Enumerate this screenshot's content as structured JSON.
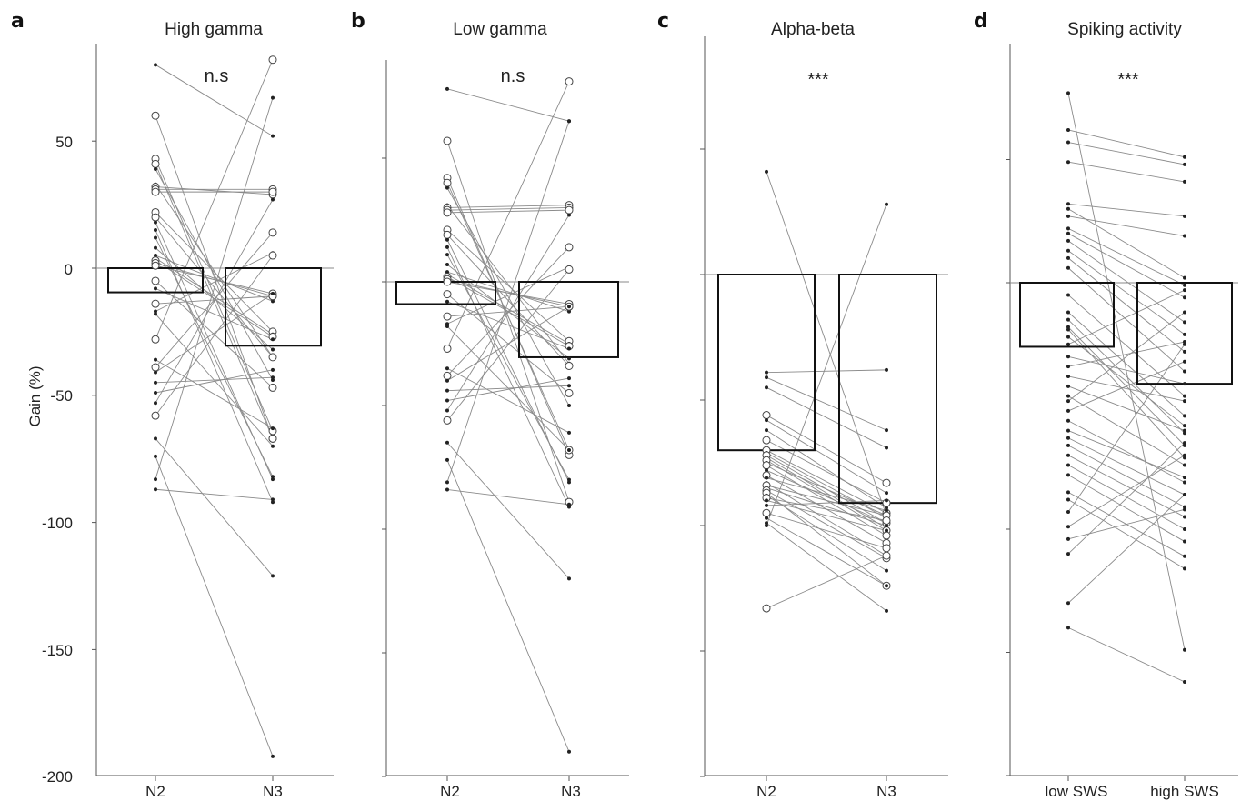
{
  "figure": {
    "ylabel": "Gain (%)",
    "yticks": [
      50,
      0,
      -50,
      -100,
      -150,
      -200
    ]
  },
  "chart_data": [
    {
      "type": "bar",
      "panel": "a",
      "title": "High gamma",
      "significance": "n.s",
      "categories": [
        "N2",
        "N3"
      ],
      "values": [
        -9.5,
        -30.5
      ],
      "ylabel": "Gain (%)",
      "ylim": [
        -200,
        88
      ],
      "yticks": [
        50,
        0,
        -50,
        -100,
        -150,
        -200
      ],
      "grid": false,
      "paired_points": [
        [
          80,
          52,
          "dot"
        ],
        [
          60,
          -67,
          "circle"
        ],
        [
          43,
          -64,
          "circle"
        ],
        [
          41,
          -67,
          "circle"
        ],
        [
          39,
          -44,
          "dot"
        ],
        [
          33,
          -35,
          "dot"
        ],
        [
          32,
          29,
          "circle"
        ],
        [
          31,
          31,
          "circle"
        ],
        [
          30,
          30,
          "circle"
        ],
        [
          22,
          -25,
          "circle"
        ],
        [
          20,
          -35,
          "circle"
        ],
        [
          18,
          -83,
          "dot"
        ],
        [
          15,
          -92,
          "dot"
        ],
        [
          12,
          -82,
          "dot"
        ],
        [
          8,
          -32,
          "dot"
        ],
        [
          5,
          -13,
          "dot"
        ],
        [
          4,
          -26,
          "dot"
        ],
        [
          3,
          -27,
          "circle"
        ],
        [
          2,
          -11,
          "circle"
        ],
        [
          1,
          -10,
          "circle"
        ],
        [
          -5,
          -47,
          "circle"
        ],
        [
          -8,
          -28,
          "dot"
        ],
        [
          -14,
          -11,
          "circle"
        ],
        [
          -17,
          6,
          "dot"
        ],
        [
          -18,
          -70,
          "dot"
        ],
        [
          -28,
          82,
          "circle"
        ],
        [
          -36,
          -63,
          "dot"
        ],
        [
          -39,
          14,
          "circle"
        ],
        [
          -41,
          -10,
          "dot"
        ],
        [
          -45,
          -43,
          "dot"
        ],
        [
          -49,
          -40,
          "dot"
        ],
        [
          -53,
          27,
          "dot"
        ],
        [
          -58,
          5,
          "circle"
        ],
        [
          -67,
          -121,
          "dot"
        ],
        [
          -74,
          -192,
          "dot"
        ],
        [
          -83,
          67,
          "dot"
        ],
        [
          -87,
          -91,
          "dot"
        ]
      ]
    },
    {
      "type": "bar",
      "panel": "b",
      "title": "Low gamma",
      "significance": "n.s",
      "categories": [
        "N2",
        "N3"
      ],
      "values": [
        -9,
        -30.5
      ],
      "ylim": [
        -200,
        88
      ],
      "yticks": [
        50,
        0,
        -50,
        -100,
        -150,
        -200
      ],
      "grid": false,
      "paired_points": [
        [
          78,
          65,
          "dot"
        ],
        [
          57,
          -89,
          "circle"
        ],
        [
          42,
          -70,
          "circle"
        ],
        [
          40,
          -68,
          "circle"
        ],
        [
          38,
          -50,
          "dot"
        ],
        [
          31,
          -33,
          "dot"
        ],
        [
          30,
          31,
          "circle"
        ],
        [
          29,
          30,
          "circle"
        ],
        [
          28,
          29,
          "circle"
        ],
        [
          21,
          -24,
          "circle"
        ],
        [
          19,
          -34,
          "circle"
        ],
        [
          17,
          -81,
          "dot"
        ],
        [
          14,
          -91,
          "dot"
        ],
        [
          11,
          -80,
          "dot"
        ],
        [
          7,
          -31,
          "dot"
        ],
        [
          4,
          -12,
          "dot"
        ],
        [
          3,
          -25,
          "dot"
        ],
        [
          2,
          -26,
          "circle"
        ],
        [
          1,
          -10,
          "circle"
        ],
        [
          0,
          -9,
          "circle"
        ],
        [
          -5,
          -45,
          "circle"
        ],
        [
          -8,
          -27,
          "dot"
        ],
        [
          -14,
          -10,
          "circle"
        ],
        [
          -17,
          6,
          "dot"
        ],
        [
          -18,
          -68,
          "dot"
        ],
        [
          -27,
          81,
          "circle"
        ],
        [
          -35,
          -61,
          "dot"
        ],
        [
          -38,
          14,
          "circle"
        ],
        [
          -40,
          -10,
          "dot"
        ],
        [
          -44,
          -42,
          "dot"
        ],
        [
          -48,
          -39,
          "dot"
        ],
        [
          -52,
          27,
          "dot"
        ],
        [
          -56,
          5,
          "circle"
        ],
        [
          -65,
          -120,
          "dot"
        ],
        [
          -72,
          -190,
          "dot"
        ],
        [
          -81,
          65,
          "dot"
        ],
        [
          -84,
          -90,
          "dot"
        ]
      ]
    },
    {
      "type": "bar",
      "panel": "c",
      "title": "Alpha-beta",
      "significance": "***",
      "categories": [
        "N2",
        "N3"
      ],
      "values": [
        -70,
        -91
      ],
      "ylim": [
        -200,
        88
      ],
      "yticks": [
        50,
        0,
        -50,
        -100,
        -150,
        -200
      ],
      "grid": false,
      "paired_points": [
        [
          41,
          -96,
          "dot"
        ],
        [
          -39,
          -38,
          "dot"
        ],
        [
          -41,
          -62,
          "dot"
        ],
        [
          -45,
          -69,
          "dot"
        ],
        [
          -56,
          -83,
          "circle"
        ],
        [
          -58,
          -87,
          "dot"
        ],
        [
          -62,
          -93,
          "dot"
        ],
        [
          -66,
          -91,
          "circle"
        ],
        [
          -70,
          -95,
          "circle"
        ],
        [
          -71,
          -97,
          "dot"
        ],
        [
          -72,
          -99,
          "circle"
        ],
        [
          -73,
          -101,
          "dot"
        ],
        [
          -74,
          -102,
          "circle"
        ],
        [
          -75,
          -96,
          "dot"
        ],
        [
          -76,
          -104,
          "circle"
        ],
        [
          -78,
          -99,
          "dot"
        ],
        [
          -80,
          -107,
          "circle"
        ],
        [
          -81,
          -94,
          "dot"
        ],
        [
          -83,
          -112,
          "dot"
        ],
        [
          -84,
          -96,
          "circle"
        ],
        [
          -85,
          -100,
          "dot"
        ],
        [
          -86,
          -113,
          "circle"
        ],
        [
          -87,
          -124,
          "circle"
        ],
        [
          -88,
          -118,
          "dot"
        ],
        [
          -89,
          -98,
          "circle"
        ],
        [
          -90,
          -102,
          "dot"
        ],
        [
          -92,
          -90,
          "dot"
        ],
        [
          -95,
          -109,
          "circle"
        ],
        [
          -97,
          -124,
          "dot"
        ],
        [
          -99,
          -134,
          "dot"
        ],
        [
          -133,
          -112,
          "circle"
        ],
        [
          -100,
          28,
          "dot"
        ]
      ]
    },
    {
      "type": "bar",
      "panel": "d",
      "title": "Spiking activity",
      "significance": "***",
      "categories": [
        "low SWS",
        "high SWS"
      ],
      "values": [
        -26,
        -41
      ],
      "ylim": [
        -200,
        88
      ],
      "yticks": [
        50,
        0,
        -50,
        -100,
        -150,
        -200
      ],
      "grid": false,
      "paired_points": [
        [
          77,
          -149,
          "dot"
        ],
        [
          62,
          51,
          "dot"
        ],
        [
          57,
          48,
          "dot"
        ],
        [
          49,
          41,
          "dot"
        ],
        [
          32,
          27,
          "dot"
        ],
        [
          30,
          2,
          "dot"
        ],
        [
          27,
          19,
          "dot"
        ],
        [
          22,
          -1,
          "dot"
        ],
        [
          20,
          -6,
          "dot"
        ],
        [
          17,
          -16,
          "dot"
        ],
        [
          13,
          -21,
          "dot"
        ],
        [
          10,
          -28,
          "dot"
        ],
        [
          6,
          -36,
          "dot"
        ],
        [
          -5,
          -46,
          "dot"
        ],
        [
          -12,
          -54,
          "dot"
        ],
        [
          -15,
          -61,
          "dot"
        ],
        [
          -18,
          -66,
          "dot"
        ],
        [
          -19,
          -71,
          "dot"
        ],
        [
          -22,
          -58,
          "dot"
        ],
        [
          -25,
          -3,
          "dot"
        ],
        [
          -30,
          -41,
          "dot"
        ],
        [
          -34,
          -24,
          "dot"
        ],
        [
          -38,
          -48,
          "dot"
        ],
        [
          -42,
          -60,
          "dot"
        ],
        [
          -46,
          -74,
          "dot"
        ],
        [
          -48,
          -12,
          "dot"
        ],
        [
          -52,
          -32,
          "dot"
        ],
        [
          -56,
          -81,
          "dot"
        ],
        [
          -60,
          -79,
          "dot"
        ],
        [
          -63,
          -86,
          "dot"
        ],
        [
          -66,
          -91,
          "dot"
        ],
        [
          -70,
          -95,
          "dot"
        ],
        [
          -74,
          -100,
          "dot"
        ],
        [
          -78,
          -105,
          "dot"
        ],
        [
          -85,
          -111,
          "dot"
        ],
        [
          -88,
          -116,
          "dot"
        ],
        [
          -93,
          -25,
          "dot"
        ],
        [
          -99,
          -70,
          "dot"
        ],
        [
          -104,
          -92,
          "dot"
        ],
        [
          -110,
          -65,
          "dot"
        ],
        [
          -130,
          -86,
          "dot"
        ],
        [
          -140,
          -162,
          "dot"
        ]
      ]
    }
  ]
}
